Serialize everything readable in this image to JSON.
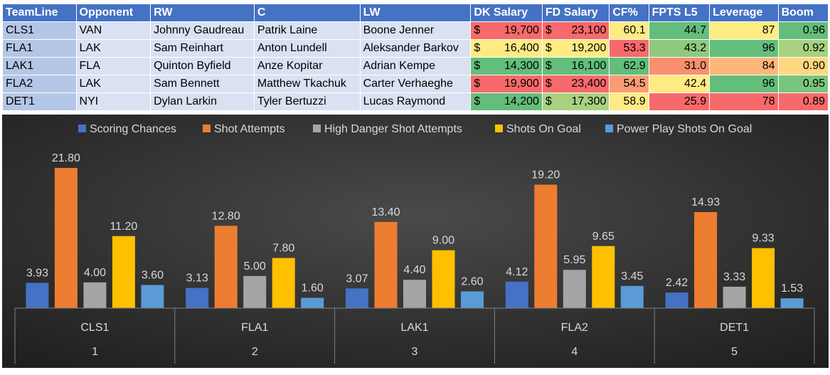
{
  "table": {
    "headers": [
      "TeamLine",
      "Opponent",
      "RW",
      "C",
      "LW",
      "DK Salary",
      "FD Salary",
      "CF%",
      "FPTS L5",
      "Leverage",
      "Boom"
    ],
    "rows": [
      {
        "teamline": "CLS1",
        "opponent": "VAN",
        "rw": "Johnny Gaudreau",
        "c": "Patrik Laine",
        "lw": "Boone Jenner",
        "dk": "19,700",
        "fd": "23,100",
        "cf": "60.1",
        "fpts": "44.7",
        "leverage": "87",
        "boom": "0.96",
        "colors": {
          "dk": "#f8696b",
          "fd": "#f8696b",
          "cf": "#ffeb84",
          "fpts": "#63be7b",
          "leverage": "#ffeb84",
          "boom": "#63be7b"
        }
      },
      {
        "teamline": "FLA1",
        "opponent": "LAK",
        "rw": "Sam Reinhart",
        "c": "Anton Lundell",
        "lw": "Aleksander Barkov",
        "dk": "16,400",
        "fd": "19,200",
        "cf": "53.3",
        "fpts": "43.2",
        "leverage": "96",
        "boom": "0.92",
        "colors": {
          "dk": "#ffeb84",
          "fd": "#ffeb84",
          "cf": "#f8696b",
          "fpts": "#8dca7e",
          "leverage": "#63be7b",
          "boom": "#a6d27f"
        }
      },
      {
        "teamline": "LAK1",
        "opponent": "FLA",
        "rw": "Quinton Byfield",
        "c": "Anze Kopitar",
        "lw": "Adrian Kempe",
        "dk": "14,300",
        "fd": "16,100",
        "cf": "62.9",
        "fpts": "31.0",
        "leverage": "84",
        "boom": "0.90",
        "colors": {
          "dk": "#63be7b",
          "fd": "#63be7b",
          "cf": "#63be7b",
          "fpts": "#f8906f",
          "leverage": "#fdb779",
          "boom": "#fed880"
        }
      },
      {
        "teamline": "FLA2",
        "opponent": "LAK",
        "rw": "Sam Bennett",
        "c": "Matthew Tkachuk",
        "lw": "Carter Verhaeghe",
        "dk": "19,900",
        "fd": "23,400",
        "cf": "54.5",
        "fpts": "42.4",
        "leverage": "96",
        "boom": "0.95",
        "colors": {
          "dk": "#f8696b",
          "fd": "#f8696b",
          "cf": "#fa9d74",
          "fpts": "#ffeb84",
          "leverage": "#63be7b",
          "boom": "#7ac57d"
        }
      },
      {
        "teamline": "DET1",
        "opponent": "NYI",
        "rw": "Dylan Larkin",
        "c": "Tyler Bertuzzi",
        "lw": "Lucas Raymond",
        "dk": "14,200",
        "fd": "17,300",
        "cf": "58.9",
        "fpts": "25.9",
        "leverage": "78",
        "boom": "0.89",
        "colors": {
          "dk": "#63be7b",
          "fd": "#a8d27f",
          "cf": "#ffeb84",
          "fpts": "#f8696b",
          "leverage": "#f8696b",
          "boom": "#f8696b"
        }
      }
    ],
    "currency_symbol": "$"
  },
  "chart_data": {
    "type": "bar",
    "categories": [
      "CLS1",
      "FLA1",
      "LAK1",
      "FLA2",
      "DET1"
    ],
    "category_indices": [
      "1",
      "2",
      "3",
      "4",
      "5"
    ],
    "series": [
      {
        "name": "Scoring Chances",
        "color": "#4472c4",
        "values": [
          3.93,
          3.13,
          3.07,
          4.12,
          2.42
        ]
      },
      {
        "name": "Shot Attempts",
        "color": "#ed7d31",
        "values": [
          21.8,
          12.8,
          13.4,
          19.2,
          14.93
        ]
      },
      {
        "name": "High Danger Shot Attempts",
        "color": "#a5a5a5",
        "values": [
          4.0,
          5.0,
          4.4,
          5.95,
          3.33
        ]
      },
      {
        "name": "Shots On Goal",
        "color": "#ffc000",
        "values": [
          11.2,
          7.8,
          9.0,
          9.65,
          9.33
        ]
      },
      {
        "name": "Power Play Shots On Goal",
        "color": "#5b9bd5",
        "values": [
          3.6,
          1.6,
          2.6,
          3.45,
          1.53
        ]
      }
    ],
    "ylim": [
      0,
      24
    ],
    "legend": "top",
    "grid": false,
    "background": "#2b2b2b"
  }
}
